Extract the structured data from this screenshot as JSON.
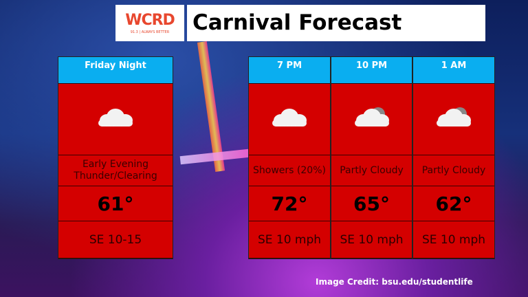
{
  "logo": {
    "name": "WCRD",
    "tagline": "91.3 | ALWAYS BETTER",
    "color": "#e8472e"
  },
  "title": "Carnival Forecast",
  "colors": {
    "header": "#0aaef0",
    "panel": "#d40000"
  },
  "periods": [
    {
      "label": "Friday Night",
      "icon": "cloud-rain-icon",
      "desc": "Early Evening Thunder/Clearing",
      "temp": "61°",
      "wind": "SE 10-15"
    },
    {
      "label": "7 PM",
      "icon": "cloud-rain-icon",
      "desc": "Showers (20%)",
      "temp": "72°",
      "wind": "SE 10 mph"
    },
    {
      "label": "10 PM",
      "icon": "partly-cloudy-night-icon",
      "desc": "Partly Cloudy",
      "temp": "65°",
      "wind": "SE 10 mph"
    },
    {
      "label": "1 AM",
      "icon": "partly-cloudy-night-icon",
      "desc": "Partly Cloudy",
      "temp": "62°",
      "wind": "SE 10 mph"
    }
  ],
  "credit": "Image Credit: bsu.edu/studentlife"
}
